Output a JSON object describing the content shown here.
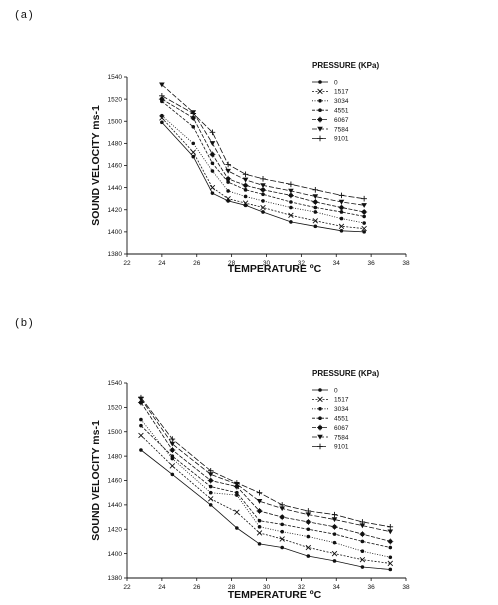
{
  "panels": [
    {
      "label": "(a)"
    },
    {
      "label": "(b)"
    }
  ],
  "chart_data": [
    {
      "type": "line",
      "xlabel": "TEMPERATURE ºC",
      "ylabel": "SOUND VELOCITY ms-1",
      "xlim": [
        22,
        38
      ],
      "ylim": [
        1380,
        1540
      ],
      "xticks": [
        22,
        24,
        26,
        28,
        30,
        32,
        34,
        36,
        38
      ],
      "yticks": [
        1380,
        1400,
        1420,
        1440,
        1460,
        1480,
        1500,
        1520,
        1540
      ],
      "legend_title": "PRESSURE (KPa)",
      "legend_position": "top-right",
      "series": [
        {
          "name": "0",
          "marker": "dot",
          "dash": "",
          "x": [
            24,
            25.8,
            26.9,
            27.8,
            28.8,
            29.8,
            31.4,
            32.8,
            34.3,
            35.6
          ],
          "y": [
            1499,
            1468,
            1435,
            1428,
            1424,
            1418,
            1409,
            1405,
            1401,
            1400
          ]
        },
        {
          "name": "1517",
          "marker": "x",
          "dash": "2,1.5",
          "x": [
            24,
            25.8,
            26.9,
            27.8,
            28.8,
            29.8,
            31.4,
            32.8,
            34.3,
            35.6
          ],
          "y": [
            1503,
            1472,
            1440,
            1430,
            1426,
            1422,
            1415,
            1410,
            1405,
            1403
          ]
        },
        {
          "name": "3034",
          "marker": "dot",
          "dash": "1,1.5",
          "x": [
            24,
            25.8,
            26.9,
            27.8,
            28.8,
            29.8,
            31.4,
            32.8,
            34.3,
            35.6
          ],
          "y": [
            1505,
            1480,
            1455,
            1437,
            1432,
            1428,
            1422,
            1418,
            1412,
            1408
          ]
        },
        {
          "name": "4551",
          "marker": "dot",
          "dash": "3,1.5",
          "x": [
            24,
            25.8,
            26.9,
            27.8,
            28.8,
            29.8,
            31.4,
            32.8,
            34.3,
            35.6
          ],
          "y": [
            1518,
            1495,
            1462,
            1445,
            1438,
            1434,
            1427,
            1422,
            1418,
            1414
          ]
        },
        {
          "name": "6067",
          "marker": "star",
          "dash": "4,1.5",
          "x": [
            24,
            25.8,
            26.9,
            27.8,
            28.8,
            29.8,
            31.4,
            32.8,
            34.3,
            35.6
          ],
          "y": [
            1520,
            1503,
            1470,
            1448,
            1442,
            1438,
            1433,
            1427,
            1422,
            1418
          ]
        },
        {
          "name": "7584",
          "marker": "triangle",
          "dash": "5,2",
          "x": [
            24,
            25.8,
            26.9,
            27.8,
            28.8,
            29.8,
            31.4,
            32.8,
            34.3,
            35.6
          ],
          "y": [
            1533,
            1508,
            1480,
            1455,
            1447,
            1442,
            1437,
            1432,
            1427,
            1424
          ]
        },
        {
          "name": "9101",
          "marker": "plus",
          "dash": "6,2",
          "x": [
            24,
            25.8,
            26.9,
            27.8,
            28.8,
            29.8,
            31.4,
            32.8,
            34.3,
            35.6
          ],
          "y": [
            1523,
            1507,
            1490,
            1461,
            1452,
            1448,
            1443,
            1438,
            1433,
            1430
          ]
        }
      ]
    },
    {
      "type": "line",
      "xlabel": "TEMPERATURE ºC",
      "ylabel": "SOUND VELOCITY ms-1",
      "xlim": [
        22,
        38
      ],
      "ylim": [
        1380,
        1540
      ],
      "xticks": [
        22,
        24,
        26,
        28,
        30,
        32,
        34,
        36,
        38
      ],
      "yticks": [
        1380,
        1400,
        1420,
        1440,
        1460,
        1480,
        1500,
        1520,
        1540
      ],
      "legend_title": "PRESSURE (KPa)",
      "legend_position": "top-right",
      "series": [
        {
          "name": "0",
          "marker": "dot",
          "dash": "",
          "x": [
            22.8,
            24.6,
            26.8,
            28.3,
            29.6,
            30.9,
            32.4,
            33.9,
            35.5,
            37.1
          ],
          "y": [
            1485,
            1465,
            1440,
            1421,
            1408,
            1405,
            1398,
            1394,
            1389,
            1387
          ]
        },
        {
          "name": "1517",
          "marker": "x",
          "dash": "2,1.5",
          "x": [
            22.8,
            24.6,
            26.8,
            28.3,
            29.6,
            30.9,
            32.4,
            33.9,
            35.5,
            37.1
          ],
          "y": [
            1497,
            1472,
            1445,
            1434,
            1417,
            1412,
            1405,
            1400,
            1395,
            1392
          ]
        },
        {
          "name": "3034",
          "marker": "dot",
          "dash": "1,1.5",
          "x": [
            22.8,
            24.6,
            26.8,
            28.3,
            29.6,
            30.9,
            32.4,
            33.9,
            35.5,
            37.1
          ],
          "y": [
            1510,
            1478,
            1450,
            1448,
            1422,
            1418,
            1414,
            1409,
            1402,
            1397
          ]
        },
        {
          "name": "4551",
          "marker": "dot",
          "dash": "3,1.5",
          "x": [
            22.8,
            24.6,
            26.8,
            28.3,
            29.6,
            30.9,
            32.4,
            33.9,
            35.5,
            37.1
          ],
          "y": [
            1505,
            1480,
            1455,
            1450,
            1427,
            1424,
            1420,
            1416,
            1410,
            1405
          ]
        },
        {
          "name": "6067",
          "marker": "star",
          "dash": "4,1.5",
          "x": [
            22.8,
            24.6,
            26.8,
            28.3,
            29.6,
            30.9,
            32.4,
            33.9,
            35.5,
            37.1
          ],
          "y": [
            1524,
            1485,
            1460,
            1455,
            1435,
            1430,
            1426,
            1422,
            1416,
            1410
          ]
        },
        {
          "name": "7584",
          "marker": "triangle",
          "dash": "5,2",
          "x": [
            22.8,
            24.6,
            26.8,
            28.3,
            29.6,
            30.9,
            32.4,
            33.9,
            35.5,
            37.1
          ],
          "y": [
            1527,
            1490,
            1465,
            1457,
            1443,
            1437,
            1432,
            1428,
            1423,
            1418
          ]
        },
        {
          "name": "9101",
          "marker": "plus",
          "dash": "6,2",
          "x": [
            22.8,
            24.6,
            26.8,
            28.3,
            29.6,
            30.9,
            32.4,
            33.9,
            35.5,
            37.1
          ],
          "y": [
            1528,
            1494,
            1468,
            1458,
            1450,
            1440,
            1435,
            1432,
            1426,
            1422
          ]
        }
      ]
    }
  ]
}
